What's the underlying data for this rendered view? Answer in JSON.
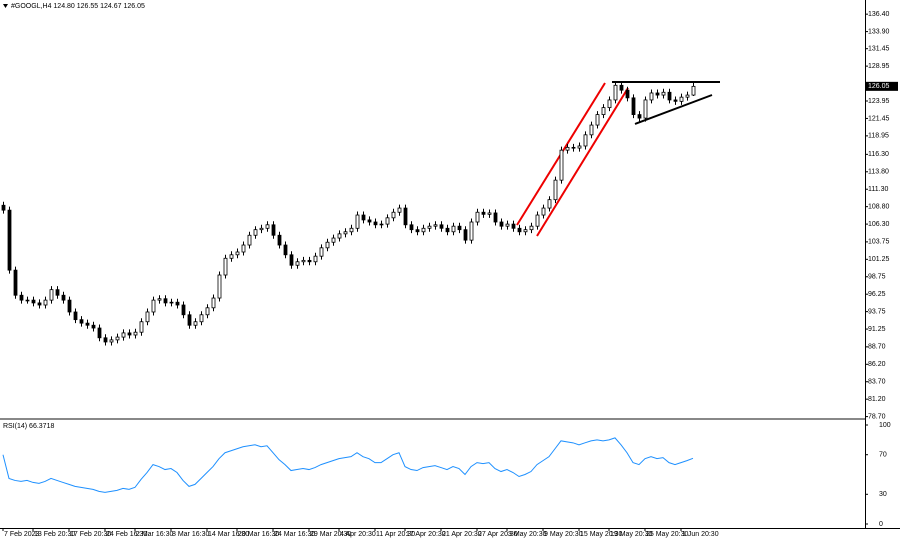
{
  "header": "#GOOGL,H4 124.80 126.55 124.67 126.05",
  "chart_data": [
    {
      "type": "candlestick",
      "categories": [
        "7 Feb 2023",
        null,
        null,
        null,
        null,
        "13 Feb 20:30",
        null,
        null,
        null,
        null,
        null,
        "17 Feb 20:30",
        null,
        null,
        null,
        null,
        null,
        "24 Feb 16:30",
        null,
        null,
        null,
        null,
        "2 Mar 16:30",
        null,
        null,
        null,
        null,
        null,
        "8 Mar 16:30",
        null,
        null,
        null,
        null,
        null,
        "14 Mar 16:30",
        null,
        null,
        null,
        null,
        "20 Mar 16:30",
        null,
        null,
        null,
        null,
        null,
        "24 Mar 16:30",
        null,
        null,
        null,
        null,
        null,
        "29 Mar 20:30",
        null,
        null,
        null,
        null,
        "4 Apr 20:30",
        null,
        null,
        null,
        null,
        null,
        "11 Apr 20:30",
        null,
        null,
        null,
        null,
        "17 Apr 20:30",
        null,
        null,
        null,
        null,
        null,
        "21 Apr 20:30",
        null,
        null,
        null,
        null,
        null,
        "27 Apr 20:30",
        null,
        null,
        null,
        null,
        "3 May 20:30",
        null,
        null,
        null,
        null,
        null,
        "9 May 20:30",
        null,
        null,
        null,
        null,
        null,
        "15 May 20:30",
        null,
        null,
        null,
        null,
        "19 May 20:30",
        null,
        null,
        null,
        null,
        null,
        "25 May 20:30",
        null,
        null,
        null,
        null,
        null,
        "1 Jun 20:30",
        null,
        null
      ],
      "open": [
        109.0,
        108.3,
        99.7,
        96.1,
        95.4,
        95.4,
        95.0,
        94.7,
        95.4,
        96.9,
        96.1,
        95.4,
        93.7,
        92.6,
        92.1,
        91.8,
        91.4,
        90.0,
        89.4,
        89.7,
        90.1,
        90.7,
        90.4,
        90.8,
        92.3,
        93.7,
        95.4,
        95.6,
        95.0,
        95.1,
        94.7,
        93.3,
        91.8,
        92.3,
        93.3,
        94.3,
        95.7,
        99.0,
        101.4,
        101.9,
        102.3,
        103.3,
        104.7,
        105.5,
        105.7,
        106.2,
        104.7,
        103.3,
        101.9,
        100.4,
        100.9,
        101.1,
        100.9,
        101.7,
        102.9,
        103.7,
        104.3,
        104.9,
        105.2,
        105.7,
        107.6,
        106.9,
        106.6,
        106.2,
        106.3,
        107.2,
        108.0,
        108.6,
        106.2,
        105.5,
        105.2,
        105.7,
        106.0,
        106.2,
        105.7,
        105.2,
        106.0,
        105.5,
        104.0,
        106.6,
        108.0,
        107.7,
        107.9,
        106.6,
        106.0,
        106.3,
        105.7,
        105.2,
        105.5,
        106.0,
        107.6,
        108.6,
        109.8,
        112.6,
        116.9,
        117.3,
        117.2,
        117.5,
        119.1,
        120.5,
        122.0,
        123.0,
        124.1,
        126.2,
        125.5,
        124.4,
        122.0,
        121.5,
        124.1,
        125.1,
        124.8,
        125.2,
        124.1,
        123.9,
        124.5,
        124.8
      ],
      "high": [
        109.5,
        108.8,
        100.2,
        96.6,
        95.9,
        95.9,
        95.5,
        95.9,
        97.4,
        97.4,
        96.6,
        95.9,
        94.2,
        93.1,
        92.6,
        92.3,
        91.9,
        90.5,
        90.2,
        90.6,
        91.2,
        91.2,
        91.3,
        92.8,
        94.2,
        95.9,
        96.1,
        96.1,
        95.6,
        95.6,
        95.2,
        93.8,
        92.8,
        93.8,
        94.8,
        96.2,
        99.5,
        101.9,
        102.4,
        102.8,
        103.8,
        105.2,
        106.0,
        106.2,
        106.7,
        106.7,
        105.2,
        103.8,
        102.4,
        101.4,
        101.6,
        101.6,
        102.2,
        103.4,
        104.2,
        104.8,
        105.4,
        105.7,
        106.2,
        108.1,
        108.1,
        107.4,
        107.1,
        106.8,
        107.7,
        108.5,
        109.1,
        109.1,
        106.7,
        106.0,
        106.2,
        106.5,
        106.7,
        106.7,
        106.2,
        106.5,
        106.5,
        106.0,
        107.1,
        108.5,
        108.5,
        108.4,
        108.4,
        107.1,
        106.8,
        106.8,
        106.2,
        106.0,
        106.5,
        108.1,
        109.1,
        110.3,
        113.1,
        117.4,
        117.8,
        117.8,
        118.0,
        119.6,
        121.0,
        122.5,
        123.5,
        124.6,
        126.7,
        126.7,
        126.0,
        124.9,
        122.5,
        124.6,
        125.6,
        125.6,
        125.7,
        125.7,
        124.6,
        125.0,
        125.3,
        126.55
      ],
      "low": [
        107.8,
        99.2,
        95.6,
        94.9,
        94.9,
        94.5,
        94.2,
        94.2,
        94.9,
        95.6,
        94.9,
        93.2,
        92.1,
        91.6,
        91.3,
        90.9,
        89.5,
        88.9,
        88.9,
        89.2,
        89.6,
        89.9,
        89.9,
        90.3,
        91.8,
        93.2,
        94.9,
        94.5,
        94.5,
        94.2,
        92.8,
        91.3,
        91.3,
        91.8,
        92.8,
        93.8,
        95.2,
        98.5,
        100.9,
        101.4,
        101.8,
        102.8,
        104.2,
        105.0,
        105.2,
        104.2,
        102.8,
        101.4,
        99.9,
        99.9,
        100.4,
        100.4,
        100.4,
        101.2,
        102.4,
        103.2,
        103.8,
        104.4,
        104.7,
        105.2,
        106.4,
        106.1,
        105.7,
        105.7,
        105.8,
        106.7,
        107.5,
        105.7,
        105.0,
        104.7,
        104.7,
        105.2,
        105.5,
        105.2,
        104.7,
        104.7,
        105.0,
        103.5,
        103.5,
        106.1,
        107.2,
        107.2,
        106.1,
        105.5,
        105.5,
        105.2,
        104.7,
        104.7,
        105.0,
        105.5,
        107.1,
        108.1,
        109.3,
        112.1,
        116.4,
        116.7,
        116.7,
        117.0,
        118.6,
        120.0,
        121.5,
        122.5,
        123.6,
        125.0,
        123.9,
        121.5,
        121.0,
        121.0,
        123.6,
        124.3,
        124.3,
        123.6,
        123.4,
        123.4,
        124.0,
        124.67
      ],
      "close": [
        108.3,
        99.7,
        96.1,
        95.4,
        95.4,
        95.0,
        94.7,
        95.4,
        96.9,
        96.1,
        95.4,
        93.7,
        92.6,
        92.1,
        91.8,
        91.4,
        90.0,
        89.4,
        89.7,
        90.1,
        90.7,
        90.4,
        90.8,
        92.3,
        93.7,
        95.4,
        95.6,
        95.0,
        95.1,
        94.7,
        93.3,
        91.8,
        92.3,
        93.3,
        94.3,
        95.7,
        99.0,
        101.4,
        101.9,
        102.3,
        103.3,
        104.7,
        105.5,
        105.7,
        106.2,
        104.7,
        103.3,
        101.9,
        100.4,
        100.9,
        101.1,
        100.9,
        101.7,
        102.9,
        103.7,
        104.3,
        104.9,
        105.2,
        105.7,
        107.6,
        106.9,
        106.6,
        106.2,
        106.3,
        107.2,
        108.0,
        108.6,
        106.2,
        105.5,
        105.2,
        105.7,
        106.0,
        106.2,
        105.7,
        105.2,
        106.0,
        105.5,
        104.0,
        106.6,
        108.0,
        107.7,
        107.9,
        106.6,
        106.0,
        106.3,
        105.7,
        105.2,
        105.5,
        106.0,
        107.6,
        108.6,
        109.8,
        112.6,
        116.9,
        117.3,
        117.2,
        117.5,
        119.1,
        120.5,
        122.0,
        123.0,
        124.1,
        126.2,
        125.5,
        124.4,
        122.0,
        121.5,
        124.1,
        125.1,
        124.8,
        125.2,
        124.1,
        123.9,
        124.5,
        124.8,
        126.05
      ],
      "ylim": [
        78.5,
        138.0
      ],
      "yticks": [
        {
          "value": 136.4,
          "label": "136.40"
        },
        {
          "value": 133.9,
          "label": "133.90"
        },
        131.45,
        128.95,
        123.95,
        121.45,
        118.95,
        {
          "value": 116.3,
          "label": "116.30"
        },
        {
          "value": 113.8,
          "label": "113.80"
        },
        {
          "value": 111.3,
          "label": "111.30"
        },
        {
          "value": 108.8,
          "label": "108.80"
        },
        {
          "value": 106.3,
          "label": "106.30"
        },
        103.75,
        101.25,
        98.75,
        96.25,
        93.75,
        91.25,
        {
          "value": 88.7,
          "label": "88.70"
        },
        {
          "value": 86.2,
          "label": "86.20"
        },
        {
          "value": 83.7,
          "label": "83.70"
        },
        {
          "value": 81.2,
          "label": "81.20"
        },
        {
          "value": 78.7,
          "label": "78.70"
        }
      ]
    },
    {
      "type": "line",
      "title": "RSI(14) 66.3718",
      "color": "#1e90ff",
      "values": [
        70,
        46,
        44,
        43,
        44,
        42,
        41,
        43,
        46,
        44,
        42,
        40,
        38,
        37,
        36,
        35,
        33,
        32,
        33,
        34,
        36,
        35,
        37,
        45,
        52,
        60,
        58,
        55,
        56,
        52,
        44,
        38,
        40,
        46,
        52,
        58,
        66,
        72,
        74,
        76,
        78,
        79,
        80,
        78,
        79,
        72,
        65,
        60,
        54,
        55,
        56,
        55,
        57,
        60,
        62,
        64,
        66,
        67,
        68,
        72,
        68,
        66,
        62,
        62,
        66,
        70,
        72,
        58,
        55,
        54,
        57,
        58,
        59,
        57,
        55,
        58,
        56,
        50,
        58,
        62,
        61,
        62,
        56,
        53,
        55,
        52,
        48,
        50,
        53,
        60,
        64,
        68,
        76,
        84,
        83,
        82,
        80,
        82,
        84,
        85,
        84,
        85,
        87,
        80,
        72,
        62,
        60,
        66,
        68,
        66,
        67,
        62,
        60,
        62,
        64,
        66.3718
      ],
      "ylim": [
        0,
        100
      ],
      "yticks": [
        0,
        30,
        70,
        100
      ]
    }
  ]
}
